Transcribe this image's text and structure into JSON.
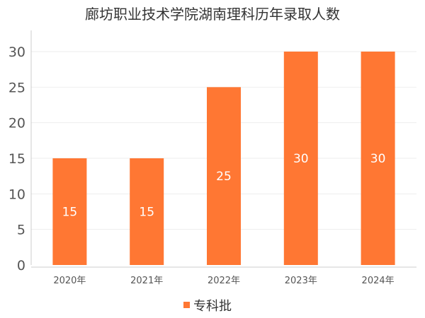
{
  "chart_data": {
    "type": "bar",
    "title": "廊坊职业技术学院湖南理科历年录取人数",
    "categories": [
      "2020年",
      "2021年",
      "2022年",
      "2023年",
      "2024年"
    ],
    "series": [
      {
        "name": "专科批",
        "values": [
          15,
          15,
          25,
          30,
          30
        ]
      }
    ],
    "xlabel": "",
    "ylabel": "",
    "ylim": [
      0,
      30
    ],
    "yticks": [
      0,
      5,
      10,
      15,
      20,
      25,
      30
    ],
    "grid": true,
    "legend": "bottom-center",
    "data_labels": true,
    "colors": {
      "bar": "#FF7733",
      "label": "#FFFFFF",
      "grid": "#EEEEEE",
      "axis": "#CCCCCC"
    }
  }
}
